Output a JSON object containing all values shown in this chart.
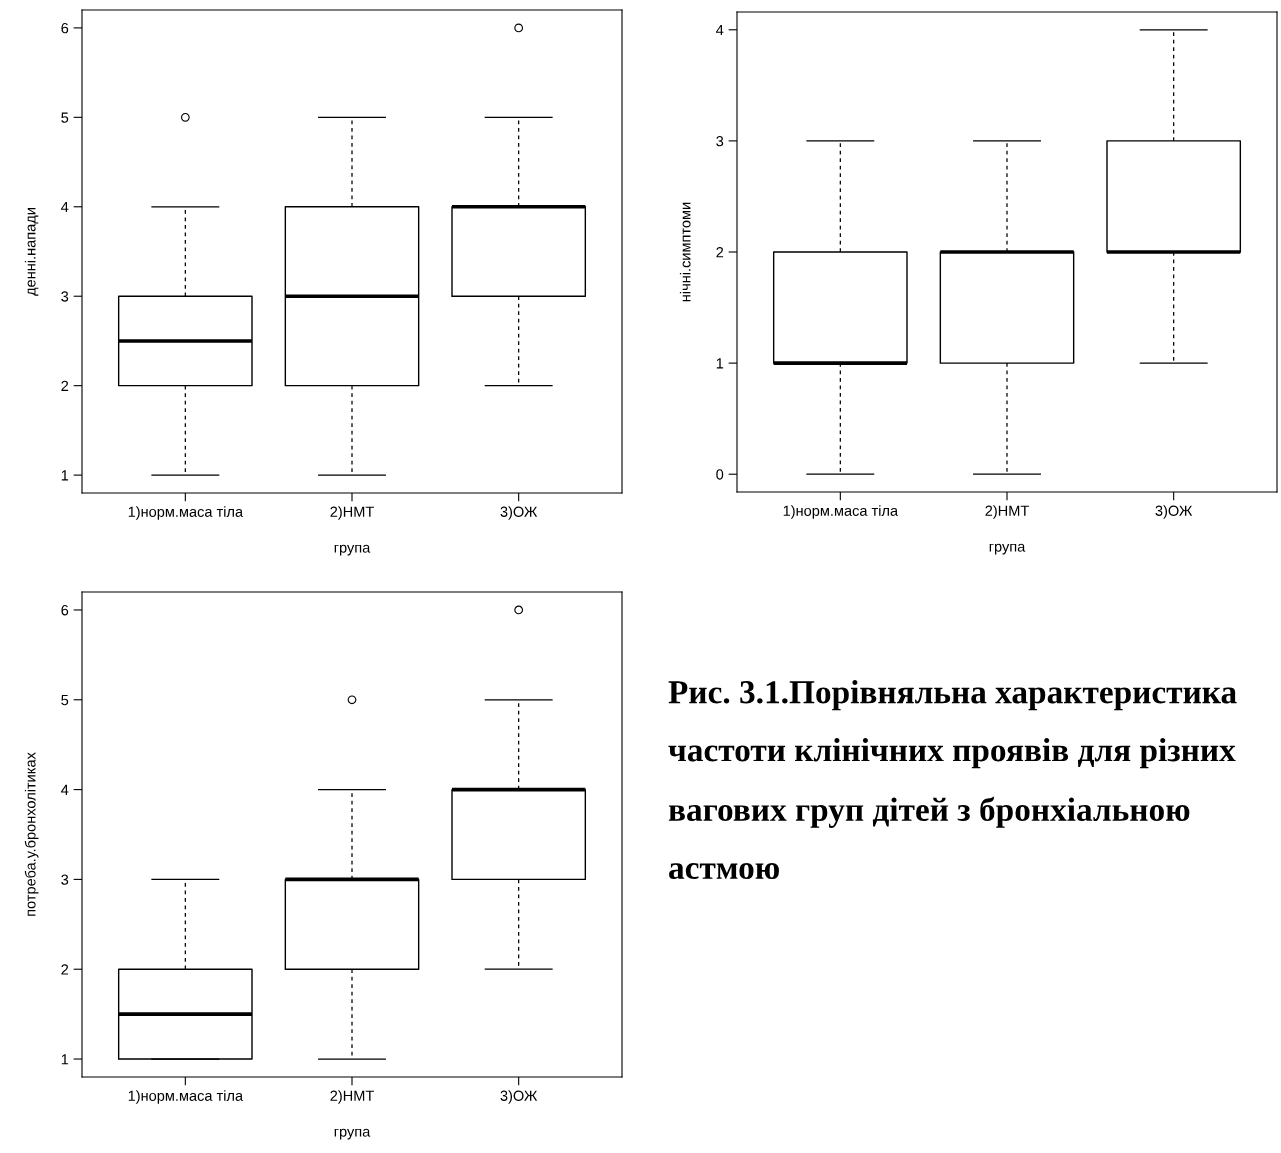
{
  "chart_data": [
    {
      "type": "box",
      "xlabel": "група",
      "ylabel": "денні.напади",
      "categories": [
        "1)норм.маса тіла",
        "2)НМТ",
        "3)ОЖ"
      ],
      "ylim": [
        0.8,
        6.2
      ],
      "yticks": [
        1,
        2,
        3,
        4,
        5,
        6
      ],
      "grid": false,
      "boxes": [
        {
          "low": 1,
          "q1": 2,
          "median": 2.5,
          "q3": 3,
          "high": 4,
          "outliers": [
            5
          ]
        },
        {
          "low": 1,
          "q1": 2,
          "median": 3,
          "q3": 4,
          "high": 5
        },
        {
          "low": 2,
          "q1": 3,
          "median": 4,
          "q3": 4,
          "high": 5,
          "outliers": [
            6
          ]
        }
      ]
    },
    {
      "type": "box",
      "xlabel": "група",
      "ylabel": "нічні.симптоми",
      "categories": [
        "1)норм.маса тіла",
        "2)НМТ",
        "3)ОЖ"
      ],
      "ylim": [
        -0.16,
        4.16
      ],
      "yticks": [
        0,
        1,
        2,
        3,
        4
      ],
      "grid": false,
      "boxes": [
        {
          "low": 0,
          "q1": 1,
          "median": 1,
          "q3": 2,
          "high": 3
        },
        {
          "low": 0,
          "q1": 1,
          "median": 2,
          "q3": 2,
          "high": 3
        },
        {
          "low": 1,
          "q1": 2,
          "median": 2,
          "q3": 3,
          "high": 4
        }
      ]
    },
    {
      "type": "box",
      "xlabel": "група",
      "ylabel": "потреба.у.бронхолітиках",
      "categories": [
        "1)норм.маса тіла",
        "2)НМТ",
        "3)ОЖ"
      ],
      "ylim": [
        0.8,
        6.2
      ],
      "yticks": [
        1,
        2,
        3,
        4,
        5,
        6
      ],
      "grid": false,
      "boxes": [
        {
          "low": 1,
          "q1": 1,
          "median": 1.5,
          "q3": 2,
          "high": 3
        },
        {
          "low": 1,
          "q1": 2,
          "median": 3,
          "q3": 3,
          "high": 4,
          "outliers": [
            5
          ]
        },
        {
          "low": 2,
          "q1": 3,
          "median": 4,
          "q3": 4,
          "high": 5,
          "outliers": [
            6
          ]
        }
      ]
    },
    {
      "type": "other",
      "title": "Рис. 3.1.Порівняльна характеристика частоти клінічних проявів для різних вагових груп дітей з бронхіальною астмою"
    }
  ]
}
